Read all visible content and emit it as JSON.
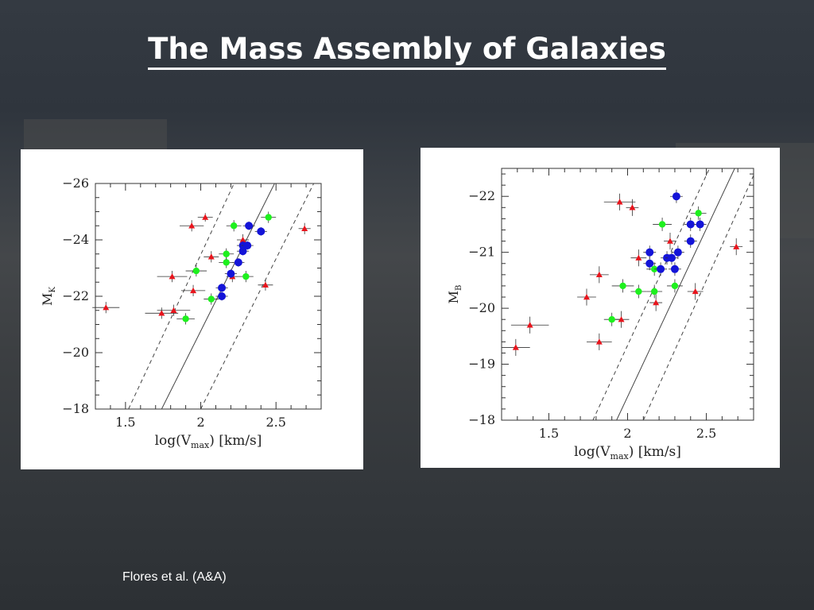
{
  "slide": {
    "title": "The Mass Assembly of Galaxies",
    "credit": "Flores et al. (A&A)"
  },
  "colors": {
    "red": "#e8141c",
    "green": "#1ef01e",
    "blue": "#1414d8"
  },
  "chart_data": [
    {
      "type": "scatter",
      "xlabel": "log(V",
      "xlabel_sub": "max",
      "xlabel_tail": ") [km/s]",
      "ylabel": "M",
      "ylabel_sub": "K",
      "xlim": [
        1.3,
        2.8
      ],
      "ylim": [
        -18,
        -26
      ],
      "xticks": [
        1.5,
        2,
        2.5
      ],
      "xticklabels": [
        "1.5",
        "2",
        "2.5"
      ],
      "yticks": [
        -26,
        -24,
        -22,
        -20,
        -18
      ],
      "yticklabels": [
        "−26",
        "−24",
        "−22",
        "−20",
        "−18"
      ],
      "lines": [
        {
          "style": "solid",
          "x": [
            1.74,
            2.5
          ],
          "y": [
            -18,
            -26.1
          ]
        },
        {
          "style": "dashed",
          "x": [
            1.52,
            2.23
          ],
          "y": [
            -18,
            -26.1
          ]
        },
        {
          "style": "dashed",
          "x": [
            2.0,
            2.76
          ],
          "y": [
            -18,
            -26.1
          ]
        }
      ],
      "series": [
        {
          "color": "red",
          "marker": "triangle",
          "points": [
            [
              1.37,
              -21.6,
              0.09,
              0.2
            ],
            [
              1.74,
              -21.4,
              0.11,
              0.2
            ],
            [
              1.82,
              -21.5,
              0.11,
              0.2
            ],
            [
              1.81,
              -22.7,
              0.1,
              0.2
            ],
            [
              1.95,
              -22.2,
              0.08,
              0.2
            ],
            [
              1.94,
              -24.5,
              0.08,
              0.2
            ],
            [
              2.03,
              -24.8,
              0.05,
              0.15
            ],
            [
              2.07,
              -23.4,
              0.05,
              0.2
            ],
            [
              2.21,
              -22.7,
              0.04,
              0.2
            ],
            [
              2.28,
              -24.0,
              0.04,
              0.2
            ],
            [
              2.43,
              -22.4,
              0.05,
              0.2
            ],
            [
              2.69,
              -24.4,
              0.04,
              0.2
            ]
          ]
        },
        {
          "color": "green",
          "marker": "circle",
          "points": [
            [
              1.9,
              -21.2,
              0.06,
              0.2
            ],
            [
              1.97,
              -22.9,
              0.07,
              0.2
            ],
            [
              2.07,
              -21.9,
              0.05,
              0.2
            ],
            [
              2.17,
              -23.2,
              0.05,
              0.2
            ],
            [
              2.17,
              -23.5,
              0.05,
              0.2
            ],
            [
              2.22,
              -24.5,
              0.05,
              0.2
            ],
            [
              2.3,
              -22.7,
              0.05,
              0.2
            ],
            [
              2.45,
              -24.8,
              0.05,
              0.2
            ]
          ]
        },
        {
          "color": "blue",
          "marker": "circle",
          "points": [
            [
              2.14,
              -22.0,
              0.04,
              0.15
            ],
            [
              2.14,
              -22.3,
              0.04,
              0.15
            ],
            [
              2.2,
              -22.8,
              0.04,
              0.15
            ],
            [
              2.25,
              -23.2,
              0.04,
              0.15
            ],
            [
              2.28,
              -23.6,
              0.04,
              0.15
            ],
            [
              2.28,
              -23.8,
              0.04,
              0.15
            ],
            [
              2.31,
              -23.8,
              0.04,
              0.15
            ],
            [
              2.32,
              -24.5,
              0.04,
              0.15
            ],
            [
              2.4,
              -24.3,
              0.04,
              0.15
            ]
          ]
        }
      ]
    },
    {
      "type": "scatter",
      "xlabel": "log(V",
      "xlabel_sub": "max",
      "xlabel_tail": ") [km/s]",
      "ylabel": "M",
      "ylabel_sub": "B",
      "xlim": [
        1.2,
        2.8
      ],
      "ylim": [
        -18,
        -22.5
      ],
      "xticks": [
        1.5,
        2,
        2.5
      ],
      "xticklabels": [
        "1.5",
        "2",
        "2.5"
      ],
      "yticks": [
        -22,
        -21,
        -20,
        -19,
        -18
      ],
      "yticklabels": [
        "−22",
        "−21",
        "−20",
        "−19",
        "−18"
      ],
      "lines": [
        {
          "style": "solid",
          "x": [
            1.93,
            2.68
          ],
          "y": [
            -18,
            -22.5
          ]
        },
        {
          "style": "dashed",
          "x": [
            1.78,
            2.52
          ],
          "y": [
            -18,
            -22.5
          ]
        },
        {
          "style": "dashed",
          "x": [
            2.1,
            2.82
          ],
          "y": [
            -18,
            -22.5
          ]
        }
      ],
      "series": [
        {
          "color": "red",
          "marker": "triangle",
          "points": [
            [
              1.29,
              -19.3,
              0.09,
              0.15
            ],
            [
              1.38,
              -19.7,
              0.12,
              0.15
            ],
            [
              1.74,
              -20.2,
              0.06,
              0.15
            ],
            [
              1.82,
              -20.6,
              0.06,
              0.15
            ],
            [
              1.82,
              -19.4,
              0.08,
              0.15
            ],
            [
              1.96,
              -19.8,
              0.05,
              0.15
            ],
            [
              1.95,
              -21.9,
              0.1,
              0.15
            ],
            [
              2.03,
              -21.8,
              0.04,
              0.15
            ],
            [
              2.07,
              -20.9,
              0.05,
              0.15
            ],
            [
              2.18,
              -20.1,
              0.04,
              0.15
            ],
            [
              2.27,
              -21.2,
              0.04,
              0.15
            ],
            [
              2.43,
              -20.3,
              0.05,
              0.15
            ],
            [
              2.69,
              -21.1,
              0.04,
              0.15
            ]
          ]
        },
        {
          "color": "green",
          "marker": "circle",
          "points": [
            [
              1.9,
              -19.8,
              0.05,
              0.12
            ],
            [
              1.97,
              -20.4,
              0.07,
              0.12
            ],
            [
              2.07,
              -20.3,
              0.05,
              0.12
            ],
            [
              2.17,
              -20.3,
              0.05,
              0.12
            ],
            [
              2.17,
              -20.7,
              0.05,
              0.12
            ],
            [
              2.22,
              -21.5,
              0.06,
              0.12
            ],
            [
              2.3,
              -20.4,
              0.05,
              0.12
            ],
            [
              2.45,
              -21.7,
              0.05,
              0.12
            ]
          ]
        },
        {
          "color": "blue",
          "marker": "circle",
          "points": [
            [
              2.14,
              -21.0,
              0.04,
              0.12
            ],
            [
              2.14,
              -20.8,
              0.04,
              0.12
            ],
            [
              2.21,
              -20.7,
              0.04,
              0.12
            ],
            [
              2.25,
              -20.9,
              0.04,
              0.12
            ],
            [
              2.28,
              -20.9,
              0.04,
              0.12
            ],
            [
              2.3,
              -20.7,
              0.04,
              0.12
            ],
            [
              2.32,
              -21.0,
              0.04,
              0.12
            ],
            [
              2.4,
              -21.5,
              0.04,
              0.12
            ],
            [
              2.4,
              -21.2,
              0.04,
              0.12
            ],
            [
              2.46,
              -21.5,
              0.04,
              0.12
            ],
            [
              2.31,
              -22.0,
              0.04,
              0.12
            ]
          ]
        }
      ]
    }
  ]
}
